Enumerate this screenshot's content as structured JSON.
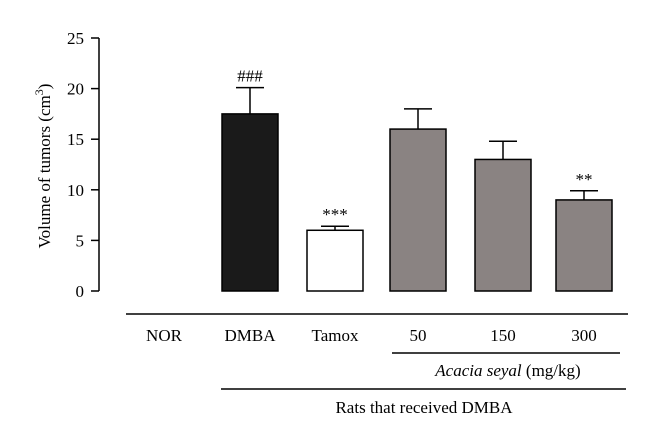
{
  "chart_data": {
    "type": "bar",
    "categories": [
      "NOR",
      "DMBA",
      "Tamox",
      "50",
      "150",
      "300"
    ],
    "values": [
      0,
      17.5,
      6.0,
      16.0,
      13.0,
      9.0
    ],
    "errors": [
      0,
      2.6,
      0.4,
      2.0,
      1.8,
      0.9
    ],
    "significance": [
      "",
      "###",
      "***",
      "",
      "",
      "**"
    ],
    "bar_colors": [
      "#ffffff",
      "#1a1a1a",
      "#ffffff",
      "#8a8382",
      "#8a8382",
      "#8a8382"
    ],
    "ylabel": "Volume of tumors (cm",
    "ylabel_sup": "3",
    "ylabel_close": ")",
    "ylim": [
      0,
      25
    ],
    "yticks": [
      0,
      5,
      10,
      15,
      20,
      25
    ],
    "group_label_species": "Acacia seyal",
    "group_label_unit": " (mg/kg)",
    "outer_group_label": "Rats that received DMBA",
    "grid": false,
    "legend": "none"
  }
}
